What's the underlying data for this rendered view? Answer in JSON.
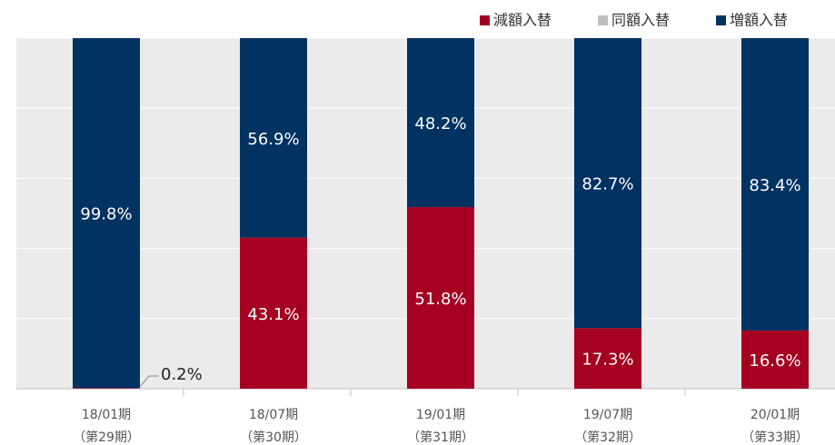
{
  "chart_data": {
    "type": "stacked_bar",
    "categories": [
      "18/01期",
      "18/07期",
      "19/01期",
      "19/07期",
      "20/01期"
    ],
    "periods": [
      "（第29期）",
      "（第30期）",
      "（第31期）",
      "（第32期）",
      "（第33期）"
    ],
    "series": [
      {
        "name": "減額入替",
        "color": "#a50021",
        "values": [
          0.2,
          43.1,
          51.8,
          17.3,
          16.6
        ],
        "value_labels": [
          "0.2%",
          "43.1%",
          "51.8%",
          "17.3%",
          "16.6%"
        ]
      },
      {
        "name": "同額入替",
        "color": "#c0c0c0",
        "values": [
          0,
          0,
          0,
          0,
          0
        ]
      },
      {
        "name": "増額入替",
        "color": "#003262",
        "values": [
          99.8,
          56.9,
          48.2,
          82.7,
          83.4
        ],
        "value_labels": [
          "99.8%",
          "56.9%",
          "48.2%",
          "82.7%",
          "83.4%"
        ]
      }
    ],
    "ylim": [
      0,
      100
    ],
    "yticks": [
      0,
      20,
      40,
      60,
      80,
      100
    ],
    "grid": true,
    "legend": "top-right"
  }
}
